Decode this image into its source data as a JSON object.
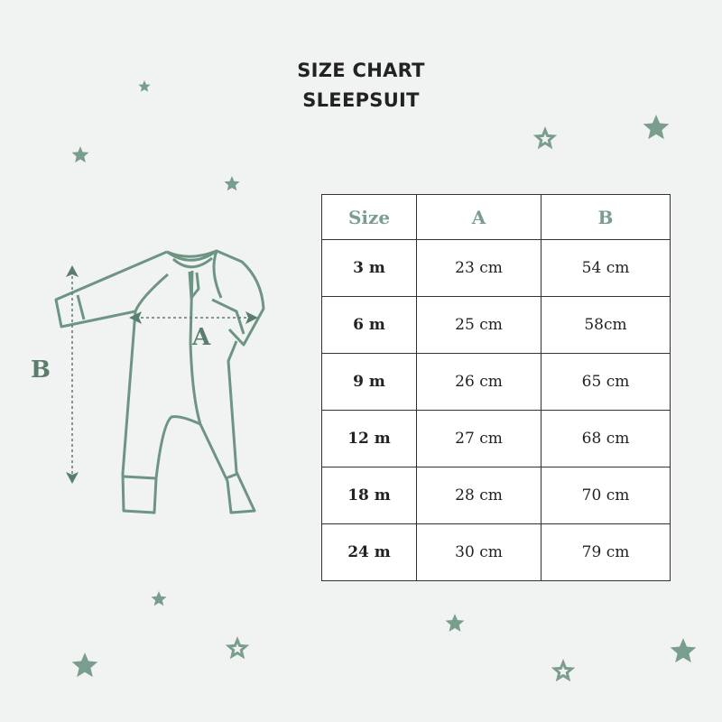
{
  "title": {
    "line1": "SIZE CHART",
    "line2": "SLEEPSUIT"
  },
  "colors": {
    "accent": "#7a9e8e",
    "background": "#f1f3f2",
    "diagram": "#6e9484"
  },
  "diagram": {
    "label_a": "A",
    "label_b": "B"
  },
  "table": {
    "headers": [
      "Size",
      "A",
      "B"
    ],
    "rows": [
      [
        "3 m",
        "23 cm",
        "54 cm"
      ],
      [
        "6 m",
        "25 cm",
        "58cm"
      ],
      [
        "9 m",
        "26 cm",
        "65 cm"
      ],
      [
        "12 m",
        "27 cm",
        "68 cm"
      ],
      [
        "18 m",
        "28 cm",
        "70 cm"
      ],
      [
        "24 m",
        "30 cm",
        "79 cm"
      ]
    ]
  }
}
